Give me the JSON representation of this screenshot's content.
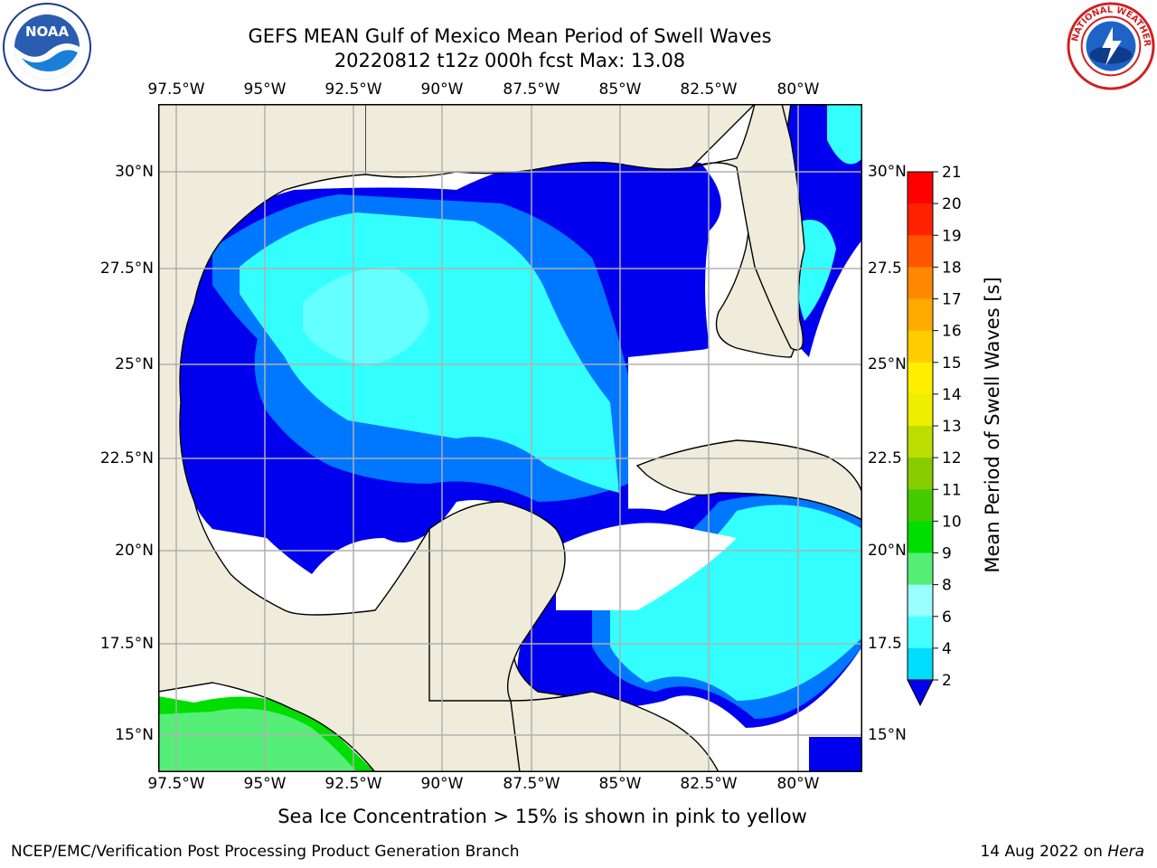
{
  "title": {
    "line1": "GEFS MEAN Gulf of Mexico Mean Period of Swell Waves",
    "line2": "20220812 t12z 000h fcst   Max: 13.08"
  },
  "logos": {
    "left": "noaa-logo",
    "right": "nws-logo"
  },
  "axes": {
    "lon_ticks": [
      "97.5°W",
      "95°W",
      "92.5°W",
      "90°W",
      "87.5°W",
      "85°W",
      "82.5°W",
      "80°W"
    ],
    "lat_ticks_left": [
      "30°N",
      "27.5°N",
      "25°N",
      "22.5°N",
      "20°N",
      "17.5°N",
      "15°N"
    ],
    "lat_ticks_right": [
      "30°N",
      "27.5",
      "25°N",
      "22.5",
      "20°N",
      "17.5",
      "15°N"
    ]
  },
  "colorbar": {
    "label": "Mean Period of Swell Waves [s]",
    "ticks": [
      "2",
      "4",
      "6",
      "8",
      "9",
      "10",
      "11",
      "12",
      "13",
      "14",
      "15",
      "16",
      "17",
      "18",
      "19",
      "20",
      "21"
    ],
    "colors": [
      "#0000ee",
      "#0077ff",
      "#00ddff",
      "#44ffff",
      "#99ffff",
      "#55ee77",
      "#00dd00",
      "#44cc00",
      "#88cc00",
      "#bbdd00",
      "#eeee00",
      "#ffee00",
      "#ffcc00",
      "#ffaa00",
      "#ff8800",
      "#ff5500",
      "#ff2200",
      "#ff0000"
    ]
  },
  "legend_note": "Sea Ice Concentration > 15% is shown in pink to yellow",
  "footer": {
    "left": "NCEP/EMC/Verification Post Processing Product Generation Branch",
    "right_prefix": "14 Aug 2022 on ",
    "right_host": "Hera"
  },
  "colors": {
    "land": "#efecdc",
    "ocean_dark": "#0000ee",
    "ocean_mid": "#0077ff",
    "ocean_light": "#33ffff",
    "grid": "#b0b0b0"
  }
}
